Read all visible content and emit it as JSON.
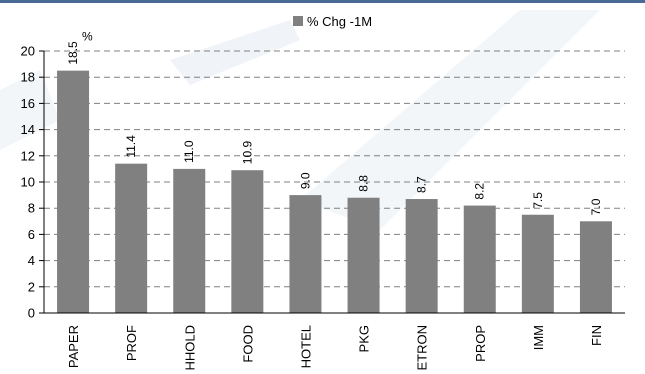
{
  "chart_data": {
    "type": "bar",
    "legend": {
      "label": "% Chg -1M",
      "position": "top-center"
    },
    "categories": [
      "PAPER",
      "PROF",
      "HHOLD",
      "FOOD",
      "HOTEL",
      "PKG",
      "ETRON",
      "PROP",
      "IMM",
      "FIN"
    ],
    "values": [
      18.5,
      11.4,
      11.0,
      10.9,
      9.0,
      8.8,
      8.7,
      8.2,
      7.5,
      7.0
    ],
    "value_labels": [
      "18.5",
      "11.4",
      "11.0",
      "10.9",
      "9.0",
      "8.8",
      "8.7",
      "8.2",
      "7.5",
      "7.0"
    ],
    "first_label_suffix": "%",
    "ylim": [
      0,
      20
    ],
    "yticks": [
      0,
      2,
      4,
      6,
      8,
      10,
      12,
      14,
      16,
      18,
      20
    ],
    "grid": true,
    "bar_color": "#808080",
    "grid_color": "#808080",
    "axis_color": "#000000"
  }
}
